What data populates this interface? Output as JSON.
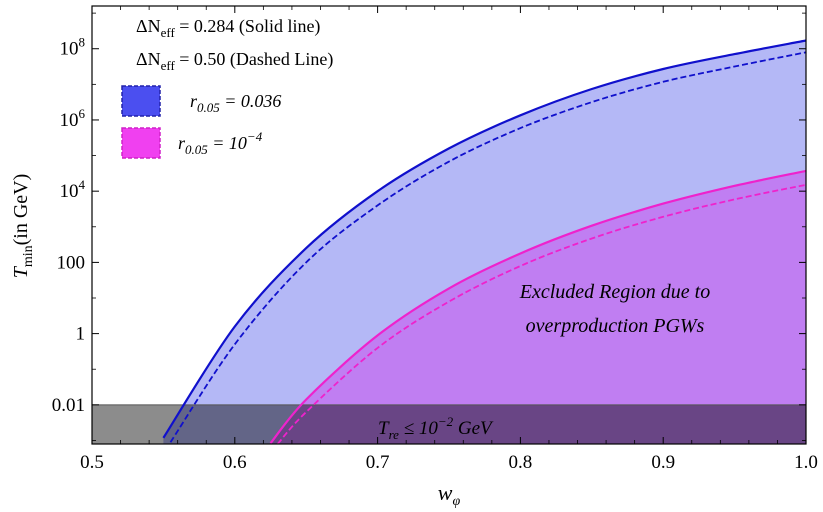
{
  "chart_data": {
    "type": "area",
    "xlabel": "w",
    "xlabel_sub": "φ",
    "ylabel": "T",
    "ylabel_sub": "min",
    "ylabel_suffix": "(in GeV)",
    "xlim": [
      0.5,
      1.0
    ],
    "ylim_log10": [
      -3.1,
      9.2
    ],
    "yscale": "log",
    "x_ticks": [
      "0.5",
      "0.6",
      "0.7",
      "0.8",
      "0.9",
      "1.0"
    ],
    "y_ticks": [
      {
        "value": 0.01,
        "label": "0.01"
      },
      {
        "value": 1,
        "label": "1"
      },
      {
        "value": 100,
        "label": "100"
      },
      {
        "value": 10000,
        "base": "10",
        "exp": "4"
      },
      {
        "value": 1000000,
        "base": "10",
        "exp": "6"
      },
      {
        "value": 100000000,
        "base": "10",
        "exp": "8"
      }
    ],
    "series": [
      {
        "name": "r0.05 = 0.036",
        "linestyle": "solid",
        "color": "#1010cc",
        "x": [
          0.55,
          0.6,
          0.65,
          0.7,
          0.75,
          0.8,
          0.85,
          0.9,
          0.95,
          1.0
        ],
        "y_log10": [
          -2.93,
          0.2,
          2.4,
          4.0,
          5.2,
          6.13,
          6.87,
          7.43,
          7.85,
          8.23
        ]
      },
      {
        "name": "r0.05 = 0.036",
        "linestyle": "dashed",
        "color": "#1010cc",
        "x": [
          0.555,
          0.6,
          0.65,
          0.7,
          0.75,
          0.8,
          0.85,
          0.9,
          0.95,
          1.0
        ],
        "y_log10": [
          -3.05,
          -0.3,
          2.0,
          3.6,
          4.83,
          5.77,
          6.5,
          7.07,
          7.5,
          7.9
        ]
      },
      {
        "name": "r0.05 = 10^-4",
        "linestyle": "solid",
        "color": "#ee22cc",
        "x": [
          0.625,
          0.65,
          0.7,
          0.75,
          0.8,
          0.85,
          0.9,
          0.95,
          1.0
        ],
        "y_log10": [
          -3.08,
          -1.85,
          -0.05,
          1.27,
          2.25,
          3.03,
          3.65,
          4.15,
          4.57
        ]
      },
      {
        "name": "r0.05 = 10^-4",
        "linestyle": "dashed",
        "color": "#ee22cc",
        "x": [
          0.63,
          0.65,
          0.7,
          0.75,
          0.8,
          0.85,
          0.9,
          0.95,
          1.0
        ],
        "y_log10": [
          -3.1,
          -2.2,
          -0.4,
          0.9,
          1.9,
          2.67,
          3.28,
          3.77,
          4.18
        ]
      }
    ],
    "colors": {
      "blue_fill": "#b4b8f6",
      "magenta_fill": "#c07ef2",
      "gray_band": "#8c8c8c",
      "blue_line": "#1010cc",
      "magenta_line": "#ee22cc"
    },
    "band": {
      "y_max": 0.01,
      "label_T": "T",
      "label_sub": "re",
      "label_mid": " ≤ 10",
      "label_exp": "−2",
      "label_unit": " GeV"
    },
    "annotation": {
      "line1": "Excluded Region due to",
      "line2": "overproduction PGWs"
    },
    "legend": {
      "line1": {
        "prefix": "ΔN",
        "sub": "eff",
        "text": " = 0.284 (Solid line)"
      },
      "line2": {
        "prefix": "ΔN",
        "sub": "eff",
        "text": " = 0.50 (Dashed Line)"
      },
      "item1": {
        "sub_label": "r",
        "sub": "0.05",
        "text": " = 0.036",
        "color": "#4b4ff0",
        "border": "#2222aa"
      },
      "item2": {
        "sub_label": "r",
        "sub": "0.05",
        "text": " = 10",
        "exp": "−4",
        "color": "#f040f0",
        "border": "#d020c8"
      }
    }
  }
}
